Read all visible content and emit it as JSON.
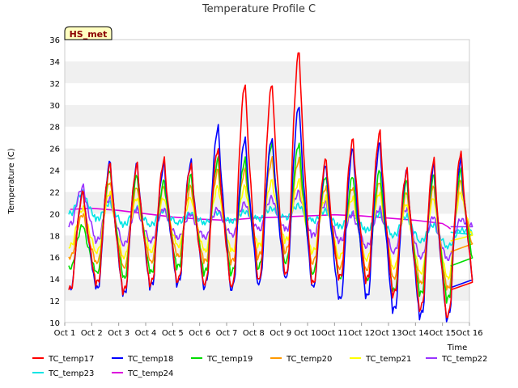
{
  "chart_data": {
    "type": "line",
    "title": "Temperature Profile C",
    "xlabel": "Time",
    "ylabel": "Temperature (C)",
    "badge": "HS_met",
    "ylim": [
      10,
      36
    ],
    "xlim": [
      1,
      16
    ],
    "yticks": [
      10,
      12,
      14,
      16,
      18,
      20,
      22,
      24,
      26,
      28,
      30,
      32,
      34,
      36
    ],
    "ytick_labels": [
      "10",
      "12",
      "14",
      "16",
      "18",
      "20",
      "22",
      "24",
      "26",
      "28",
      "30",
      "32",
      "34",
      "36"
    ],
    "xticks": [
      1,
      2,
      3,
      4,
      5,
      6,
      7,
      8,
      9,
      10,
      11,
      12,
      13,
      14,
      15,
      16
    ],
    "xtick_labels": [
      "Oct 1",
      "Oct 2",
      "Oct 3",
      "Oct 4",
      "Oct 5",
      "Oct 6",
      "Oct 7",
      "Oct 8",
      "Oct 9",
      "Oct 10",
      "Oct 11",
      "Oct 12",
      "Oct 13",
      "Oct 14",
      "Oct 15",
      "Oct 16"
    ],
    "grid": "horizontal bands",
    "legend_placement": "bottom",
    "series": [
      {
        "name": "TC_temp17",
        "color": "#ff0000",
        "daily_min": [
          13.0,
          13.5,
          12.8,
          13.5,
          13.8,
          13.5,
          13.2,
          13.8,
          14.2,
          13.5,
          14.0,
          13.8,
          12.5,
          11.2,
          10.5
        ],
        "daily_max": [
          22.0,
          24.5,
          24.5,
          25.0,
          24.5,
          26.0,
          32.0,
          32.0,
          35.0,
          25.0,
          26.8,
          27.5,
          24.0,
          25.0,
          25.7
        ],
        "end": 13.0
      },
      {
        "name": "TC_temp18",
        "color": "#0000ff",
        "daily_min": [
          13.0,
          13.0,
          12.5,
          13.2,
          13.5,
          13.2,
          13.0,
          13.5,
          14.0,
          13.2,
          12.0,
          12.2,
          11.0,
          10.5,
          10.3
        ],
        "daily_max": [
          22.0,
          24.8,
          24.6,
          24.5,
          24.8,
          28.0,
          27.0,
          27.0,
          30.0,
          24.5,
          26.0,
          26.5,
          24.0,
          24.5,
          25.0
        ],
        "end": 13.2
      },
      {
        "name": "TC_temp19",
        "color": "#00dd00",
        "daily_min": [
          15.0,
          14.5,
          14.0,
          14.5,
          15.0,
          14.5,
          14.5,
          15.0,
          15.5,
          14.5,
          14.0,
          13.8,
          12.8,
          12.5,
          12.0
        ],
        "daily_max": [
          19.0,
          24.0,
          23.5,
          23.0,
          23.5,
          25.0,
          25.0,
          26.5,
          26.5,
          23.5,
          23.5,
          24.0,
          23.0,
          23.5,
          24.0
        ],
        "end": 15.2
      },
      {
        "name": "TC_temp20",
        "color": "#ff9900",
        "daily_min": [
          16.0,
          15.5,
          15.0,
          15.5,
          16.0,
          15.5,
          15.5,
          16.0,
          16.5,
          15.5,
          15.0,
          14.8,
          14.0,
          13.5,
          13.0
        ],
        "daily_max": [
          20.0,
          23.0,
          22.5,
          22.5,
          22.5,
          24.0,
          24.0,
          25.0,
          25.0,
          22.5,
          22.5,
          23.0,
          22.0,
          22.5,
          23.0
        ],
        "end": 16.5
      },
      {
        "name": "TC_temp21",
        "color": "#ffff00",
        "daily_min": [
          17.0,
          16.5,
          16.0,
          16.5,
          17.0,
          16.5,
          16.5,
          17.0,
          17.5,
          16.5,
          16.0,
          15.8,
          15.0,
          14.5,
          14.0
        ],
        "daily_max": [
          20.5,
          22.0,
          21.5,
          21.5,
          21.5,
          22.5,
          22.5,
          23.0,
          23.0,
          21.5,
          21.5,
          22.0,
          21.0,
          21.5,
          22.0
        ],
        "end": 17.5
      },
      {
        "name": "TC_temp22",
        "color": "#9933ff",
        "daily_min": [
          19.0,
          17.5,
          17.2,
          17.5,
          17.8,
          17.8,
          18.0,
          18.5,
          18.5,
          18.0,
          17.5,
          17.0,
          16.5,
          16.0,
          15.8
        ],
        "daily_max": [
          22.5,
          21.5,
          20.5,
          20.5,
          20.0,
          20.5,
          21.0,
          21.5,
          22.0,
          21.0,
          20.0,
          20.5,
          20.5,
          19.8,
          19.5
        ],
        "end": 18.8
      },
      {
        "name": "TC_temp23",
        "color": "#00e5e5",
        "daily_min": [
          20.0,
          19.5,
          19.0,
          19.0,
          19.2,
          19.2,
          19.3,
          19.5,
          19.6,
          19.3,
          18.8,
          18.5,
          18.0,
          17.5,
          17.0
        ],
        "daily_max": [
          22.0,
          21.0,
          20.5,
          20.3,
          20.0,
          20.1,
          20.2,
          20.5,
          20.8,
          20.3,
          20.0,
          20.0,
          19.8,
          19.0,
          18.5
        ],
        "end": 18.3
      },
      {
        "name": "TC_temp24",
        "color": "#dd00dd",
        "values": [
          20.4,
          20.5,
          20.3,
          20.0,
          19.7,
          19.5,
          19.4,
          19.6,
          19.7,
          19.8,
          19.9,
          19.8,
          19.6,
          19.4,
          19.1,
          18.8,
          18.6
        ],
        "x": [
          1.2,
          2.0,
          3.0,
          4.0,
          5.0,
          6.0,
          7.0,
          8.0,
          9.0,
          10.0,
          11.0,
          12.0,
          13.0,
          14.0,
          15.0,
          15.2,
          15.3
        ]
      }
    ]
  }
}
